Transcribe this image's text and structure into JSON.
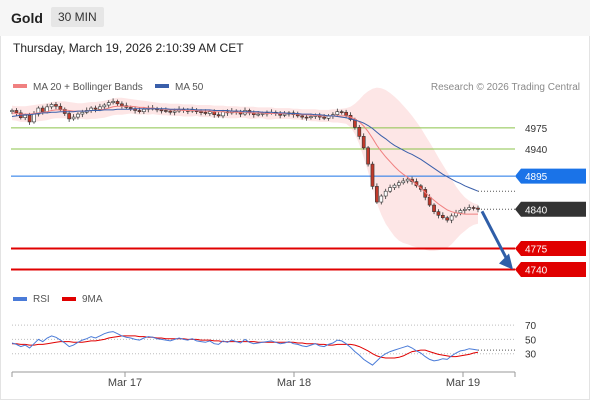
{
  "header": {
    "instrument": "Gold",
    "timeframe": "30 MIN",
    "timestamp": "Thursday, March 19, 2026 2:10:39 AM CET"
  },
  "colors": {
    "candle_up": "#ffffff",
    "candle_down": "#c0392b",
    "candle_outline": "#333333",
    "bollinger_fill": "#fde2e2",
    "ma20": "#f08080",
    "ma50": "#3a5faa",
    "target": "#8bc34a",
    "pivot": "#1a73e8",
    "support": "#e00000",
    "last_price": "#333333",
    "rsi": "#4a7bd8",
    "rsi_ma": "#e00000"
  },
  "chart_data": [
    {
      "type": "line",
      "title": "",
      "legend": [
        {
          "name": "MA 20 + Bollinger Bands",
          "color": "#f08080"
        },
        {
          "name": "MA 50",
          "color": "#3a5faa"
        }
      ],
      "legend_placement": "top-left",
      "credit": "Research © 2026 Trading Central",
      "x_ticks": [
        "Mar 17",
        "Mar 18",
        "Mar 19"
      ],
      "ylim": [
        4716,
        5028
      ],
      "levels": [
        {
          "label": "4975",
          "value": 4975,
          "style": "target"
        },
        {
          "label": "4940",
          "value": 4940,
          "style": "target"
        },
        {
          "label": "4895",
          "value": 4895,
          "style": "pivot"
        },
        {
          "label": "4840",
          "value": 4840,
          "style": "last"
        },
        {
          "label": "4775",
          "value": 4775,
          "style": "support"
        },
        {
          "label": "4740",
          "value": 4740,
          "style": "support"
        }
      ],
      "forecast_arrow": {
        "from": 4840,
        "to": 4740
      },
      "close_series": [
        5004,
        5000,
        4992,
        4996,
        4985,
        4998,
        5008,
        5002,
        5010,
        5014,
        5011,
        5006,
        4999,
        4990,
        4993,
        4998,
        5001,
        5004,
        5008,
        5006,
        5010,
        5013,
        5017,
        5019,
        5015,
        5012,
        5009,
        5007,
        5004,
        5002,
        5006,
        5008,
        5007,
        5005,
        5004,
        5003,
        5001,
        5003,
        5006,
        5004,
        5003,
        5005,
        5002,
        5001,
        4999,
        5002,
        4997,
        4995,
        5002,
        5000,
        5003,
        5001,
        4998,
        5004,
        5000,
        4997,
        4998,
        4999,
        5000,
        5001,
        4999,
        4996,
        4998,
        5000,
        4997,
        4995,
        4993,
        4992,
        4994,
        4996,
        4993,
        4991,
        4995,
        4997,
        5002,
        5001,
        4996,
        4989,
        4976,
        4961,
        4942,
        4915,
        4878,
        4852,
        4862,
        4870,
        4876,
        4880,
        4884,
        4887,
        4890,
        4886,
        4879,
        4873,
        4860,
        4847,
        4836,
        4830,
        4826,
        4822,
        4829,
        4834,
        4838,
        4840,
        4843,
        4842,
        4840
      ],
      "ma20_series": [
        5000,
        4999,
        4998,
        4998,
        4998,
        4999,
        5000,
        5001,
        5002,
        5004,
        5005,
        5005,
        5005,
        5004,
        5003,
        5003,
        5003,
        5003,
        5004,
        5004,
        5005,
        5006,
        5008,
        5010,
        5011,
        5011,
        5011,
        5011,
        5010,
        5009,
        5009,
        5008,
        5008,
        5007,
        5006,
        5006,
        5005,
        5005,
        5005,
        5004,
        5004,
        5004,
        5004,
        5003,
        5003,
        5003,
        5002,
        5002,
        5002,
        5001,
        5001,
        5001,
        5001,
        5001,
        5000,
        5000,
        5000,
        5000,
        4999,
        4999,
        4999,
        4999,
        4999,
        4999,
        4998,
        4998,
        4997,
        4997,
        4996,
        4996,
        4995,
        4995,
        4995,
        4995,
        4995,
        4995,
        4995,
        4993,
        4990,
        4985,
        4978,
        4969,
        4958,
        4946,
        4936,
        4927,
        4919,
        4911,
        4904,
        4898,
        4893,
        4887,
        4881,
        4875,
        4868,
        4861,
        4855,
        4849,
        4844,
        4839,
        4836,
        4834,
        4833,
        4832,
        4832,
        4832,
        4832
      ],
      "ma50_series": [
        4994,
        4995,
        4996,
        4997,
        4997,
        4998,
        4999,
        5000,
        5000,
        5001,
        5001,
        5002,
        5002,
        5002,
        5002,
        5003,
        5003,
        5003,
        5004,
        5004,
        5004,
        5005,
        5005,
        5005,
        5006,
        5006,
        5006,
        5006,
        5007,
        5007,
        5007,
        5007,
        5007,
        5007,
        5007,
        5007,
        5006,
        5006,
        5006,
        5006,
        5006,
        5006,
        5005,
        5005,
        5005,
        5005,
        5004,
        5004,
        5004,
        5004,
        5003,
        5003,
        5003,
        5002,
        5002,
        5002,
        5002,
        5001,
        5001,
        5001,
        5000,
        5000,
        5000,
        4999,
        4999,
        4999,
        4998,
        4998,
        4998,
        4997,
        4997,
        4996,
        4995,
        4995,
        4994,
        4993,
        4992,
        4990,
        4988,
        4986,
        4983,
        4979,
        4974,
        4968,
        4962,
        4957,
        4951,
        4946,
        4942,
        4938,
        4934,
        4931,
        4927,
        4923,
        4918,
        4913,
        4908,
        4903,
        4898,
        4894,
        4890,
        4886,
        4883,
        4879,
        4876,
        4873,
        4870
      ],
      "bb_upper_series": [
        5012,
        5011,
        5011,
        5011,
        5012,
        5013,
        5014,
        5015,
        5016,
        5018,
        5019,
        5019,
        5019,
        5018,
        5017,
        5016,
        5016,
        5017,
        5018,
        5018,
        5019,
        5020,
        5022,
        5024,
        5025,
        5025,
        5024,
        5023,
        5022,
        5021,
        5020,
        5019,
        5018,
        5017,
        5016,
        5016,
        5015,
        5015,
        5015,
        5014,
        5014,
        5014,
        5013,
        5013,
        5013,
        5013,
        5012,
        5012,
        5012,
        5011,
        5011,
        5011,
        5010,
        5010,
        5010,
        5010,
        5009,
        5009,
        5009,
        5009,
        5008,
        5008,
        5008,
        5008,
        5007,
        5007,
        5006,
        5006,
        5006,
        5006,
        5005,
        5005,
        5005,
        5006,
        5006,
        5007,
        5008,
        5010,
        5015,
        5022,
        5030,
        5036,
        5040,
        5042,
        5041,
        5038,
        5033,
        5027,
        5020,
        5012,
        5004,
        4995,
        4985,
        4975,
        4963,
        4951,
        4939,
        4926,
        4914,
        4902,
        4890,
        4878,
        4868,
        4860,
        4854,
        4850,
        4848
      ],
      "bb_lower_series": [
        4988,
        4987,
        4985,
        4985,
        4984,
        4985,
        4986,
        4987,
        4988,
        4990,
        4991,
        4991,
        4991,
        4990,
        4989,
        4990,
        4990,
        4989,
        4990,
        4990,
        4991,
        4992,
        4994,
        4996,
        4997,
        4997,
        4998,
        4999,
        4998,
        4997,
        4998,
        4997,
        4998,
        4997,
        4996,
        4996,
        4995,
        4995,
        4995,
        4994,
        4994,
        4994,
        4995,
        4993,
        4993,
        4993,
        4992,
        4992,
        4992,
        4991,
        4991,
        4991,
        4992,
        4992,
        4990,
        4990,
        4991,
        4991,
        4989,
        4989,
        4990,
        4990,
        4990,
        4990,
        4989,
        4989,
        4988,
        4988,
        4986,
        4986,
        4985,
        4985,
        4985,
        4984,
        4984,
        4983,
        4982,
        4976,
        4965,
        4948,
        4926,
        4902,
        4876,
        4850,
        4831,
        4816,
        4805,
        4795,
        4788,
        4784,
        4782,
        4779,
        4777,
        4775,
        4773,
        4771,
        4771,
        4772,
        4774,
        4776,
        4782,
        4790,
        4798,
        4804,
        4810,
        4814,
        4816
      ]
    },
    {
      "type": "line",
      "title": "",
      "legend": [
        {
          "name": "RSI",
          "color": "#4a7bd8"
        },
        {
          "name": "9MA",
          "color": "#e00000"
        }
      ],
      "legend_placement": "top-left",
      "ylim": [
        10,
        80
      ],
      "y_ticks": [
        70,
        50,
        30
      ],
      "rsi_series": [
        45,
        43,
        40,
        42,
        38,
        44,
        50,
        47,
        52,
        55,
        53,
        49,
        45,
        40,
        42,
        46,
        49,
        51,
        54,
        52,
        55,
        58,
        60,
        61,
        58,
        55,
        53,
        52,
        50,
        49,
        52,
        54,
        53,
        51,
        50,
        49,
        48,
        50,
        52,
        50,
        49,
        51,
        48,
        47,
        46,
        48,
        44,
        43,
        48,
        46,
        49,
        47,
        45,
        50,
        46,
        44,
        45,
        46,
        47,
        48,
        46,
        44,
        45,
        47,
        44,
        43,
        41,
        40,
        42,
        44,
        41,
        40,
        43,
        45,
        49,
        48,
        44,
        39,
        33,
        28,
        22,
        18,
        14,
        20,
        26,
        30,
        33,
        35,
        37,
        39,
        41,
        38,
        34,
        31,
        26,
        22,
        20,
        21,
        23,
        22,
        27,
        31,
        34,
        35,
        37,
        36,
        35
      ],
      "rsi_ma_series": [
        44,
        44,
        43,
        43,
        42,
        42,
        43,
        43,
        44,
        45,
        46,
        47,
        47,
        47,
        46,
        46,
        46,
        47,
        48,
        48,
        49,
        50,
        52,
        53,
        54,
        55,
        55,
        55,
        55,
        54,
        54,
        53,
        53,
        52,
        52,
        51,
        51,
        51,
        51,
        51,
        50,
        50,
        50,
        49,
        49,
        49,
        48,
        48,
        47,
        47,
        47,
        47,
        47,
        47,
        47,
        47,
        46,
        46,
        46,
        46,
        46,
        46,
        46,
        46,
        46,
        45,
        45,
        44,
        44,
        44,
        43,
        43,
        42,
        42,
        43,
        43,
        43,
        43,
        42,
        40,
        37,
        34,
        30,
        27,
        25,
        24,
        24,
        24,
        25,
        27,
        30,
        33,
        34,
        35,
        35,
        33,
        31,
        29,
        28,
        27,
        26,
        26,
        27,
        28,
        29,
        31,
        32
      ]
    }
  ]
}
